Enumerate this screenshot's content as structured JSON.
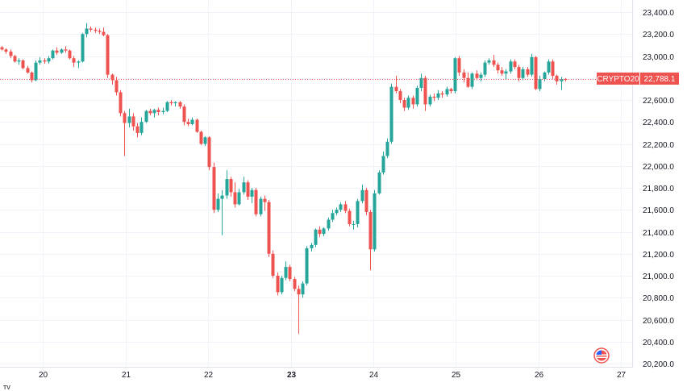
{
  "chart_data": {
    "type": "candlestick",
    "symbol": "CRYPTO20",
    "last_price": "22,788.1",
    "y_ticks": [
      "23,400.0",
      "23,200.0",
      "23,000.0",
      "22,800.0",
      "22,600.0",
      "22,400.0",
      "22,200.0",
      "22,000.0",
      "21,800.0",
      "21,600.0",
      "21,400.0",
      "21,200.0",
      "21,000.0",
      "20,800.0",
      "20,600.0",
      "20,400.0",
      "20,200.0"
    ],
    "y_tick_values": [
      23400,
      23200,
      23000,
      22800,
      22600,
      22400,
      22200,
      22000,
      21800,
      21600,
      21400,
      21200,
      21000,
      20800,
      20600,
      20400,
      20200
    ],
    "ylim": [
      20200,
      23400
    ],
    "x_ticks": [
      {
        "label": "20",
        "x": 20,
        "bold": false
      },
      {
        "label": "21",
        "x": 21,
        "bold": false
      },
      {
        "label": "22",
        "x": 22,
        "bold": false
      },
      {
        "label": "23",
        "x": 23,
        "bold": true
      },
      {
        "label": "24",
        "x": 24,
        "bold": false
      },
      {
        "label": "25",
        "x": 25,
        "bold": false
      },
      {
        "label": "26",
        "x": 26,
        "bold": false
      },
      {
        "label": "27",
        "x": 27,
        "bold": false
      }
    ],
    "xlim": [
      19.48,
      27.75
    ],
    "candle_interval_days": 0.0513,
    "first_candle_x": 19.5,
    "colors": {
      "up": "#26a69a",
      "down": "#ef5350",
      "grid": "#f0f3fa",
      "last_line": "#ef5350"
    },
    "candles": [
      [
        23080,
        23090,
        23050,
        23060
      ],
      [
        23060,
        23070,
        23020,
        23040
      ],
      [
        23040,
        23060,
        22980,
        23000
      ],
      [
        23000,
        23010,
        22940,
        22950
      ],
      [
        22950,
        22980,
        22920,
        22960
      ],
      [
        22960,
        22970,
        22880,
        22890
      ],
      [
        22890,
        22910,
        22840,
        22850
      ],
      [
        22850,
        22860,
        22760,
        22780
      ],
      [
        22780,
        22960,
        22770,
        22940
      ],
      [
        22940,
        22990,
        22920,
        22960
      ],
      [
        22960,
        22980,
        22930,
        22950
      ],
      [
        22950,
        23000,
        22930,
        22980
      ],
      [
        22980,
        23060,
        22970,
        23050
      ],
      [
        23050,
        23080,
        23010,
        23030
      ],
      [
        23030,
        23070,
        23020,
        23060
      ],
      [
        23060,
        23090,
        23030,
        23050
      ],
      [
        23050,
        23060,
        22970,
        22980
      ],
      [
        22980,
        23000,
        22900,
        22940
      ],
      [
        22940,
        22960,
        22890,
        22950
      ],
      [
        22950,
        23210,
        22940,
        23200
      ],
      [
        23200,
        23300,
        23170,
        23250
      ],
      [
        23250,
        23270,
        23220,
        23240
      ],
      [
        23240,
        23260,
        23210,
        23230
      ],
      [
        23230,
        23250,
        23200,
        23220
      ],
      [
        23220,
        23260,
        23180,
        23190
      ],
      [
        23190,
        23200,
        22800,
        22830
      ],
      [
        22830,
        22840,
        22740,
        22780
      ],
      [
        22780,
        22810,
        22640,
        22670
      ],
      [
        22670,
        22690,
        22450,
        22480
      ],
      [
        22480,
        22500,
        22090,
        22390
      ],
      [
        22390,
        22520,
        22350,
        22450
      ],
      [
        22450,
        22480,
        22320,
        22360
      ],
      [
        22360,
        22390,
        22260,
        22300
      ],
      [
        22300,
        22440,
        22280,
        22400
      ],
      [
        22400,
        22510,
        22390,
        22500
      ],
      [
        22500,
        22520,
        22460,
        22480
      ],
      [
        22480,
        22520,
        22440,
        22510
      ],
      [
        22510,
        22530,
        22460,
        22490
      ],
      [
        22490,
        22530,
        22470,
        22500
      ],
      [
        22500,
        22590,
        22490,
        22580
      ],
      [
        22580,
        22600,
        22550,
        22570
      ],
      [
        22570,
        22590,
        22540,
        22580
      ],
      [
        22580,
        22590,
        22520,
        22540
      ],
      [
        22540,
        22560,
        22370,
        22400
      ],
      [
        22400,
        22430,
        22360,
        22380
      ],
      [
        22380,
        22440,
        22370,
        22420
      ],
      [
        22420,
        22430,
        22300,
        22310
      ],
      [
        22310,
        22320,
        22190,
        22200
      ],
      [
        22200,
        22270,
        22180,
        22260
      ],
      [
        22260,
        22270,
        21960,
        21990
      ],
      [
        21990,
        22030,
        21570,
        21600
      ],
      [
        21600,
        21750,
        21580,
        21700
      ],
      [
        21700,
        21780,
        21370,
        21730
      ],
      [
        21730,
        21960,
        21700,
        21880
      ],
      [
        21880,
        21900,
        21720,
        21760
      ],
      [
        21760,
        21850,
        21620,
        21650
      ],
      [
        21650,
        21790,
        21640,
        21760
      ],
      [
        21760,
        21900,
        21740,
        21850
      ],
      [
        21850,
        21870,
        21690,
        21720
      ],
      [
        21720,
        21800,
        21660,
        21780
      ],
      [
        21780,
        21800,
        21540,
        21560
      ],
      [
        21560,
        21720,
        21540,
        21700
      ],
      [
        21700,
        21730,
        21590,
        21670
      ],
      [
        21670,
        21690,
        21170,
        21200
      ],
      [
        21200,
        21230,
        20980,
        21000
      ],
      [
        21000,
        21030,
        20820,
        20850
      ],
      [
        20850,
        21000,
        20830,
        20980
      ],
      [
        20980,
        21130,
        20960,
        21080
      ],
      [
        21080,
        21100,
        20950,
        20970
      ],
      [
        20970,
        20990,
        20860,
        20880
      ],
      [
        20880,
        20910,
        20470,
        20830
      ],
      [
        20830,
        20950,
        20800,
        20930
      ],
      [
        20930,
        21270,
        20910,
        21250
      ],
      [
        21250,
        21300,
        21220,
        21280
      ],
      [
        21280,
        21430,
        21260,
        21420
      ],
      [
        21420,
        21450,
        21350,
        21380
      ],
      [
        21380,
        21440,
        21360,
        21430
      ],
      [
        21430,
        21530,
        21410,
        21510
      ],
      [
        21510,
        21600,
        21490,
        21570
      ],
      [
        21570,
        21620,
        21550,
        21600
      ],
      [
        21600,
        21670,
        21580,
        21650
      ],
      [
        21650,
        21680,
        21570,
        21590
      ],
      [
        21590,
        21610,
        21450,
        21470
      ],
      [
        21470,
        21500,
        21420,
        21470
      ],
      [
        21470,
        21700,
        21440,
        21680
      ],
      [
        21680,
        21830,
        21660,
        21780
      ],
      [
        21780,
        21800,
        21550,
        21580
      ],
      [
        21580,
        21600,
        21050,
        21240
      ],
      [
        21240,
        21780,
        21220,
        21750
      ],
      [
        21750,
        21960,
        21740,
        21940
      ],
      [
        21940,
        22130,
        21920,
        22090
      ],
      [
        22090,
        22250,
        22070,
        22220
      ],
      [
        22220,
        22750,
        22200,
        22720
      ],
      [
        22720,
        22820,
        22660,
        22680
      ],
      [
        22680,
        22700,
        22570,
        22600
      ],
      [
        22600,
        22620,
        22500,
        22530
      ],
      [
        22530,
        22640,
        22510,
        22620
      ],
      [
        22620,
        22640,
        22520,
        22560
      ],
      [
        22560,
        22730,
        22540,
        22710
      ],
      [
        22710,
        22840,
        22680,
        22800
      ],
      [
        22800,
        22820,
        22500,
        22560
      ],
      [
        22560,
        22650,
        22540,
        22630
      ],
      [
        22630,
        22660,
        22590,
        22620
      ],
      [
        22620,
        22690,
        22600,
        22660
      ],
      [
        22660,
        22680,
        22620,
        22650
      ],
      [
        22650,
        22720,
        22630,
        22700
      ],
      [
        22700,
        22710,
        22660,
        22680
      ],
      [
        22680,
        22990,
        22660,
        22980
      ],
      [
        22980,
        23000,
        22820,
        22850
      ],
      [
        22850,
        22880,
        22760,
        22800
      ],
      [
        22800,
        22850,
        22710,
        22720
      ],
      [
        22720,
        22850,
        22700,
        22840
      ],
      [
        22840,
        22870,
        22780,
        22800
      ],
      [
        22800,
        22850,
        22770,
        22830
      ],
      [
        22830,
        22960,
        22810,
        22940
      ],
      [
        22940,
        22980,
        22920,
        22960
      ],
      [
        22960,
        23010,
        22900,
        22920
      ],
      [
        22920,
        22940,
        22840,
        22870
      ],
      [
        22870,
        22900,
        22820,
        22840
      ],
      [
        22840,
        22880,
        22790,
        22860
      ],
      [
        22860,
        22970,
        22840,
        22950
      ],
      [
        22950,
        22970,
        22880,
        22900
      ],
      [
        22900,
        22920,
        22770,
        22800
      ],
      [
        22800,
        22900,
        22780,
        22880
      ],
      [
        22880,
        22900,
        22810,
        22830
      ],
      [
        22830,
        23020,
        22810,
        22990
      ],
      [
        22990,
        23000,
        22690,
        22700
      ],
      [
        22700,
        22820,
        22680,
        22790
      ],
      [
        22790,
        22860,
        22770,
        22850
      ],
      [
        22850,
        22970,
        22830,
        22950
      ],
      [
        22950,
        22970,
        22790,
        22820
      ],
      [
        22820,
        22830,
        22740,
        22770
      ],
      [
        22770,
        22810,
        22690,
        22790
      ],
      [
        22790,
        22800,
        22770,
        22788
      ]
    ]
  },
  "watermark": {
    "logo_text": "TV"
  },
  "icons": {
    "flag_badge": "us-flag-icon"
  }
}
